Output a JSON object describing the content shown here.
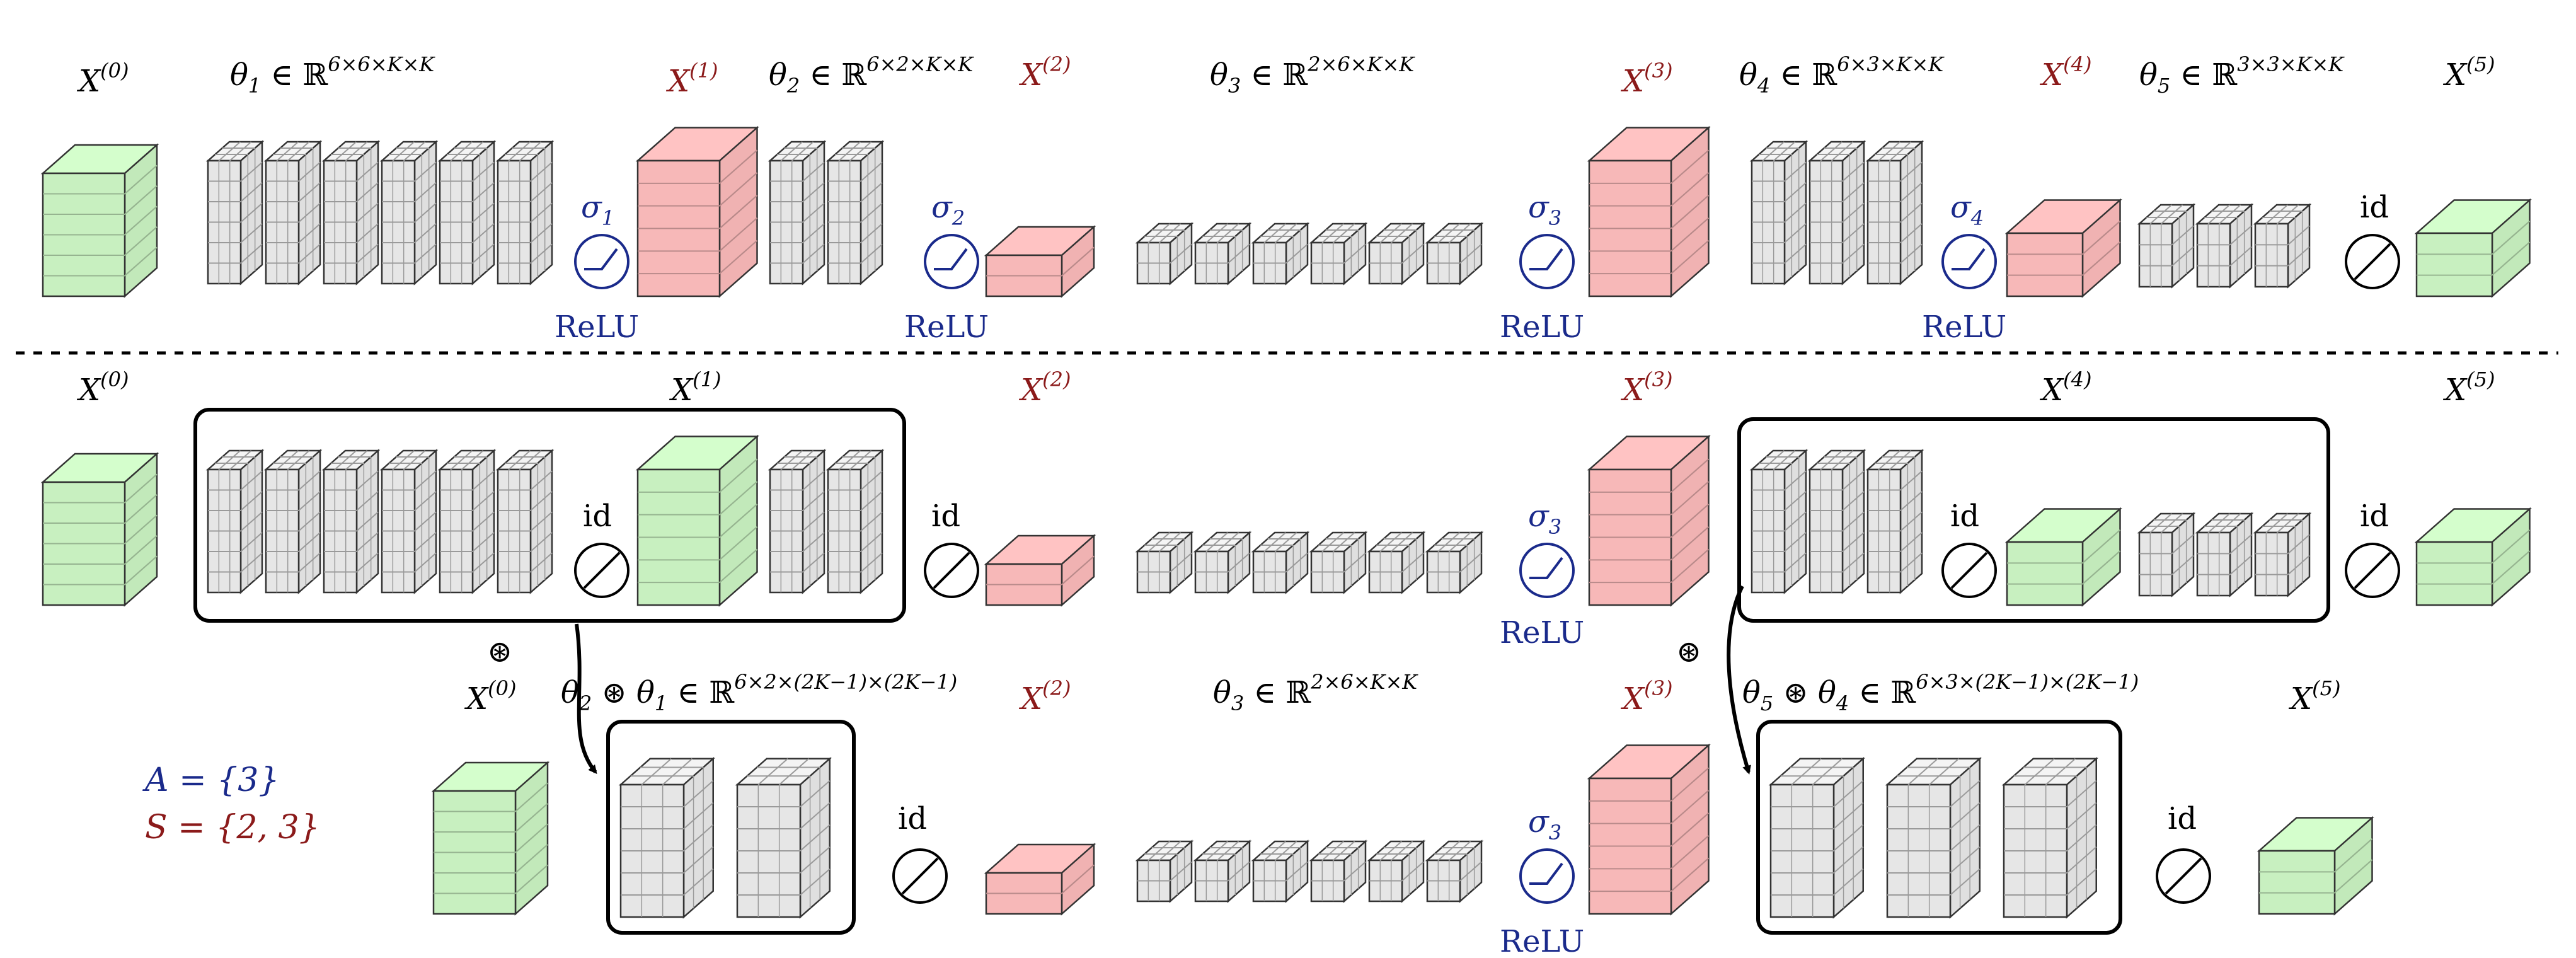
{
  "colors": {
    "input_output": "#c8f0c0",
    "hidden": "#f7b8b8",
    "kernel": "#e6e6e6",
    "activation": "#1a2a8b",
    "pruned": "#8b1a1a"
  },
  "row1": {
    "x0": "X",
    "x0_sup": "(0)",
    "theta1": "θ",
    "theta1_sub": "1",
    "theta1_rest": " ∈ ℝ",
    "theta1_sup": "6×6×K×K",
    "x1": "X",
    "x1_sup": "(1)",
    "theta2": "θ",
    "theta2_sub": "2",
    "theta2_rest": " ∈ ℝ",
    "theta2_sup": "6×2×K×K",
    "x2": "X",
    "x2_sup": "(2)",
    "theta3": "θ",
    "theta3_sub": "3",
    "theta3_rest": " ∈ ℝ",
    "theta3_sup": "2×6×K×K",
    "x3": "X",
    "x3_sup": "(3)",
    "theta4": "θ",
    "theta4_sub": "4",
    "theta4_rest": " ∈ ℝ",
    "theta4_sup": "6×3×K×K",
    "x4": "X",
    "x4_sup": "(4)",
    "theta5": "θ",
    "theta5_sub": "5",
    "theta5_rest": " ∈ ℝ",
    "theta5_sup": "3×3×K×K",
    "x5": "X",
    "x5_sup": "(5)",
    "sigma1": "σ",
    "sigma1_sub": "1",
    "sigma2": "σ",
    "sigma2_sub": "2",
    "sigma3": "σ",
    "sigma3_sub": "3",
    "sigma4": "σ",
    "sigma4_sub": "4",
    "relu": "ReLU",
    "id": "id"
  },
  "row2": {
    "x0": "X",
    "x0_sup": "(0)",
    "x1": "X",
    "x1_sup": "(1)",
    "x2": "X",
    "x2_sup": "(2)",
    "x3": "X",
    "x3_sup": "(3)",
    "x4": "X",
    "x4_sup": "(4)",
    "x5": "X",
    "x5_sup": "(5)",
    "sigma3": "σ",
    "sigma3_sub": "3",
    "relu": "ReLU",
    "id": "id"
  },
  "row3": {
    "conv_op": "⊛",
    "x0": "X",
    "x0_sup": "(0)",
    "theta21": "θ",
    "theta21_sub_a": "2",
    "theta21_op": " ⊛ θ",
    "theta21_sub_b": "1",
    "theta21_rest": " ∈ ℝ",
    "theta21_sup": "6×2×(2K−1)×(2K−1)",
    "x2": "X",
    "x2_sup": "(2)",
    "theta3": "θ",
    "theta3_sub": "3",
    "theta3_rest": " ∈ ℝ",
    "theta3_sup": "2×6×K×K",
    "x3": "X",
    "x3_sup": "(3)",
    "theta54": "θ",
    "theta54_sub_a": "5",
    "theta54_op": " ⊛ θ",
    "theta54_sub_b": "4",
    "theta54_rest": " ∈ ℝ",
    "theta54_sup": "6×3×(2K−1)×(2K−1)",
    "x5": "X",
    "x5_sup": "(5)",
    "sigma3": "σ",
    "sigma3_sub": "3",
    "relu": "ReLU",
    "id": "id"
  },
  "legend": {
    "a_label": "A = {3}",
    "s_label": "S = {2, 3}"
  }
}
